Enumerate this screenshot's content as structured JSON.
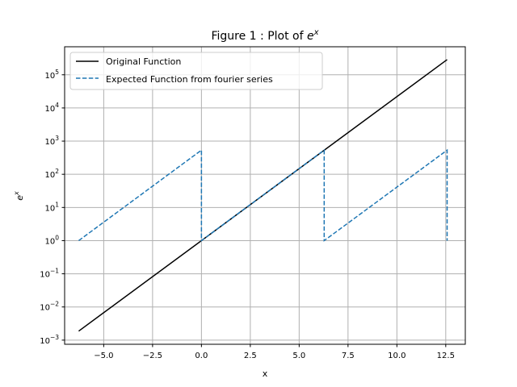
{
  "chart_data": {
    "type": "line",
    "title_text": "Figure 1 : Plot of ",
    "title_math": "e",
    "title_sup": "x",
    "xlabel": "x",
    "ylabel_base": "e",
    "ylabel_sup": "x",
    "xlim": [
      -7.0,
      13.5
    ],
    "ylim": [
      0.00075,
      700000
    ],
    "yscale": "log",
    "grid": true,
    "legend_position": "top-left",
    "xticks": [
      {
        "value": -5,
        "label": "−5.0"
      },
      {
        "value": -2.5,
        "label": "−2.5"
      },
      {
        "value": 0,
        "label": "0.0"
      },
      {
        "value": 2.5,
        "label": "2.5"
      },
      {
        "value": 5,
        "label": "5.0"
      },
      {
        "value": 7.5,
        "label": "7.5"
      },
      {
        "value": 10,
        "label": "10.0"
      },
      {
        "value": 12.5,
        "label": "12.5"
      }
    ],
    "yticks": [
      {
        "value": 0.001,
        "base": "10",
        "exp": "−3"
      },
      {
        "value": 0.01,
        "base": "10",
        "exp": "−2"
      },
      {
        "value": 0.1,
        "base": "10",
        "exp": "−1"
      },
      {
        "value": 1,
        "base": "10",
        "exp": "0"
      },
      {
        "value": 10,
        "base": "10",
        "exp": "1"
      },
      {
        "value": 100,
        "base": "10",
        "exp": "2"
      },
      {
        "value": 1000,
        "base": "10",
        "exp": "3"
      },
      {
        "value": 10000,
        "base": "10",
        "exp": "4"
      },
      {
        "value": 100000,
        "base": "10",
        "exp": "5"
      }
    ],
    "series": [
      {
        "name": "Original Function",
        "color": "#000000",
        "style": "solid",
        "x": [
          -6.28,
          12.57
        ],
        "y": [
          0.00187,
          286751
        ]
      },
      {
        "name": "Expected Function from fourier series",
        "color": "#1f77b4",
        "style": "dashed",
        "x": [
          -6.28,
          0,
          0,
          6.28,
          6.28,
          12.57,
          12.57
        ],
        "y": [
          1,
          535,
          1,
          535,
          1,
          535,
          1
        ]
      }
    ]
  }
}
